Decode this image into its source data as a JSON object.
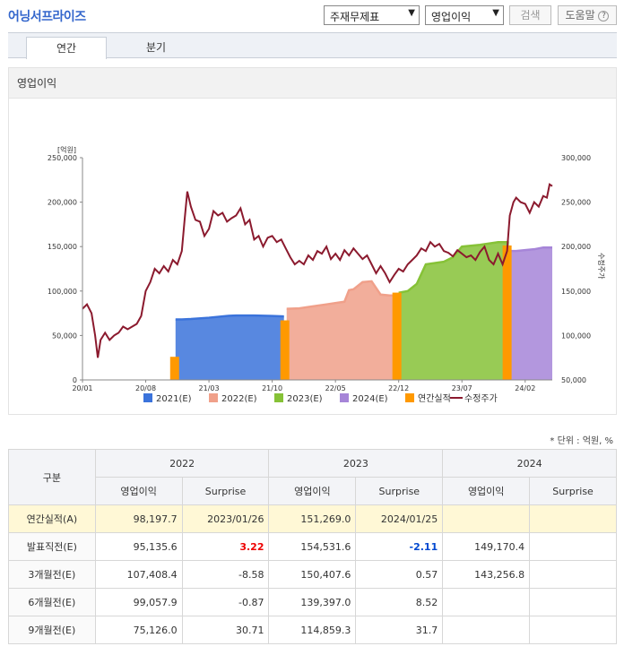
{
  "header": {
    "title": "어닝서프라이즈",
    "select1": "주재무제표",
    "select2": "영업이익",
    "search": "검색",
    "help": "도움말"
  },
  "tabs": [
    "연간",
    "분기"
  ],
  "panel_title": "영업이익",
  "chart_data": {
    "type": "area",
    "y_left_unit": "[억원]",
    "y_left_ticks": [
      "250,000",
      "200,000",
      "150,000",
      "100,000",
      "50,000",
      "0"
    ],
    "y_right_ticks": [
      "300,000",
      "250,000",
      "200,000",
      "150,000",
      "100,000",
      "50,000"
    ],
    "y_right_label": "수정주가",
    "y_left_range": [
      0,
      250000
    ],
    "y_right_range": [
      50000,
      300000
    ],
    "x_ticks": [
      "20/01",
      "20/08",
      "21/03",
      "21/10",
      "22/05",
      "22/12",
      "23/07",
      "24/02"
    ],
    "x_range_months": [
      0,
      52
    ],
    "estimate_series": [
      {
        "name": "2021(E)",
        "color": "#3b73db",
        "points": [
          [
            10.3,
            68000
          ],
          [
            11,
            68000
          ],
          [
            12,
            68500
          ],
          [
            14,
            70000
          ],
          [
            16,
            72000
          ],
          [
            17,
            72500
          ],
          [
            19,
            72500
          ],
          [
            21,
            72000
          ],
          [
            22.3,
            71500
          ]
        ]
      },
      {
        "name": "2022(E)",
        "color": "#f0a08a",
        "points": [
          [
            22.6,
            80000
          ],
          [
            24,
            80500
          ],
          [
            25,
            82000
          ],
          [
            27,
            85000
          ],
          [
            29,
            88000
          ],
          [
            29.5,
            101000
          ],
          [
            30,
            102000
          ],
          [
            31,
            110000
          ],
          [
            32,
            111000
          ],
          [
            33,
            96000
          ],
          [
            34,
            95000
          ],
          [
            34.6,
            95000
          ]
        ]
      },
      {
        "name": "2023(E)",
        "color": "#86c237",
        "points": [
          [
            35.0,
            98000
          ],
          [
            36,
            100000
          ],
          [
            37,
            108000
          ],
          [
            38,
            130000
          ],
          [
            40,
            133000
          ],
          [
            41,
            138000
          ],
          [
            42,
            150000
          ],
          [
            44,
            152000
          ],
          [
            46,
            155000
          ],
          [
            47.2,
            155000
          ]
        ]
      },
      {
        "name": "2024(E)",
        "color": "#a685d8",
        "points": [
          [
            47.3,
            145000
          ],
          [
            48,
            145000
          ],
          [
            50,
            147000
          ],
          [
            51,
            149000
          ],
          [
            52,
            149000
          ]
        ]
      }
    ],
    "actual_bars": [
      {
        "name": "연간실적",
        "color": "#ff9900",
        "x": 10.2,
        "value": 26000
      },
      {
        "name": "연간실적",
        "color": "#ff9900",
        "x": 22.4,
        "value": 67000
      },
      {
        "name": "연간실적",
        "color": "#ff9900",
        "x": 34.8,
        "value": 98197.7
      },
      {
        "name": "연간실적",
        "color": "#ff9900",
        "x": 47.0,
        "value": 151269.0
      }
    ],
    "price_series": {
      "name": "수정주가",
      "color": "#8b1a2e",
      "points": [
        [
          0,
          130000
        ],
        [
          0.5,
          135000
        ],
        [
          1,
          125000
        ],
        [
          1.4,
          100000
        ],
        [
          1.7,
          75000
        ],
        [
          2.0,
          95000
        ],
        [
          2.5,
          103000
        ],
        [
          3,
          95000
        ],
        [
          3.5,
          100000
        ],
        [
          4,
          103000
        ],
        [
          4.5,
          110000
        ],
        [
          5,
          107000
        ],
        [
          5.5,
          110000
        ],
        [
          6,
          113000
        ],
        [
          6.5,
          122000
        ],
        [
          7,
          150000
        ],
        [
          7.5,
          160000
        ],
        [
          8,
          175000
        ],
        [
          8.5,
          170000
        ],
        [
          9,
          178000
        ],
        [
          9.5,
          172000
        ],
        [
          10,
          185000
        ],
        [
          10.5,
          180000
        ],
        [
          11,
          195000
        ],
        [
          11.3,
          230000
        ],
        [
          11.6,
          262000
        ],
        [
          12,
          245000
        ],
        [
          12.5,
          230000
        ],
        [
          13,
          228000
        ],
        [
          13.5,
          212000
        ],
        [
          14,
          220000
        ],
        [
          14.5,
          240000
        ],
        [
          15,
          235000
        ],
        [
          15.5,
          238000
        ],
        [
          16,
          228000
        ],
        [
          16.5,
          232000
        ],
        [
          17,
          235000
        ],
        [
          17.5,
          243000
        ],
        [
          18,
          225000
        ],
        [
          18.5,
          230000
        ],
        [
          19,
          208000
        ],
        [
          19.5,
          212000
        ],
        [
          20,
          200000
        ],
        [
          20.5,
          210000
        ],
        [
          21,
          212000
        ],
        [
          21.5,
          205000
        ],
        [
          22,
          208000
        ],
        [
          22.5,
          198000
        ],
        [
          23,
          188000
        ],
        [
          23.5,
          180000
        ],
        [
          24,
          184000
        ],
        [
          24.5,
          180000
        ],
        [
          25,
          190000
        ],
        [
          25.5,
          185000
        ],
        [
          26,
          195000
        ],
        [
          26.5,
          192000
        ],
        [
          27,
          200000
        ],
        [
          27.5,
          186000
        ],
        [
          28,
          192000
        ],
        [
          28.5,
          185000
        ],
        [
          29,
          196000
        ],
        [
          29.5,
          190000
        ],
        [
          30,
          198000
        ],
        [
          30.5,
          192000
        ],
        [
          31,
          186000
        ],
        [
          31.5,
          190000
        ],
        [
          32,
          180000
        ],
        [
          32.5,
          170000
        ],
        [
          33,
          178000
        ],
        [
          33.5,
          170000
        ],
        [
          34,
          160000
        ],
        [
          34.5,
          168000
        ],
        [
          35,
          175000
        ],
        [
          35.5,
          172000
        ],
        [
          36,
          180000
        ],
        [
          36.5,
          185000
        ],
        [
          37,
          190000
        ],
        [
          37.5,
          198000
        ],
        [
          38,
          195000
        ],
        [
          38.5,
          205000
        ],
        [
          39,
          200000
        ],
        [
          39.5,
          203000
        ],
        [
          40,
          195000
        ],
        [
          40.5,
          193000
        ],
        [
          41,
          189000
        ],
        [
          41.5,
          196000
        ],
        [
          42,
          192000
        ],
        [
          42.5,
          188000
        ],
        [
          43,
          190000
        ],
        [
          43.5,
          185000
        ],
        [
          44,
          194000
        ],
        [
          44.5,
          200000
        ],
        [
          45,
          185000
        ],
        [
          45.5,
          180000
        ],
        [
          46,
          192000
        ],
        [
          46.5,
          180000
        ],
        [
          47,
          195000
        ],
        [
          47.3,
          235000
        ],
        [
          47.7,
          250000
        ],
        [
          48,
          255000
        ],
        [
          48.5,
          250000
        ],
        [
          49,
          248000
        ],
        [
          49.5,
          238000
        ],
        [
          50,
          250000
        ],
        [
          50.5,
          245000
        ],
        [
          51,
          257000
        ],
        [
          51.4,
          255000
        ],
        [
          51.7,
          270000
        ],
        [
          52,
          268000
        ]
      ]
    },
    "legend": [
      "2021(E)",
      "2022(E)",
      "2023(E)",
      "2024(E)",
      "연간실적",
      "수정주가"
    ],
    "legend_position": "bottom"
  },
  "table": {
    "unit": "* 단위 : 억원, %",
    "col_group": "구분",
    "years": [
      "2022",
      "2023",
      "2024"
    ],
    "sub_headers": [
      "영업이익",
      "Surprise"
    ],
    "rows": [
      {
        "label": "연간실적(A)",
        "cells": [
          "98,197.7",
          "2023/01/26",
          "151,269.0",
          "2024/01/25",
          "",
          ""
        ]
      },
      {
        "label": "발표직전(E)",
        "cells": [
          "95,135.6",
          "3.22",
          "154,531.6",
          "-2.11",
          "149,170.4",
          ""
        ]
      },
      {
        "label": "3개월전(E)",
        "cells": [
          "107,408.4",
          "-8.58",
          "150,407.6",
          "0.57",
          "143,256.8",
          ""
        ]
      },
      {
        "label": "6개월전(E)",
        "cells": [
          "99,057.9",
          "-0.87",
          "139,397.0",
          "8.52",
          "",
          ""
        ]
      },
      {
        "label": "9개월전(E)",
        "cells": [
          "75,126.0",
          "30.71",
          "114,859.3",
          "31.7",
          "",
          ""
        ]
      }
    ]
  }
}
